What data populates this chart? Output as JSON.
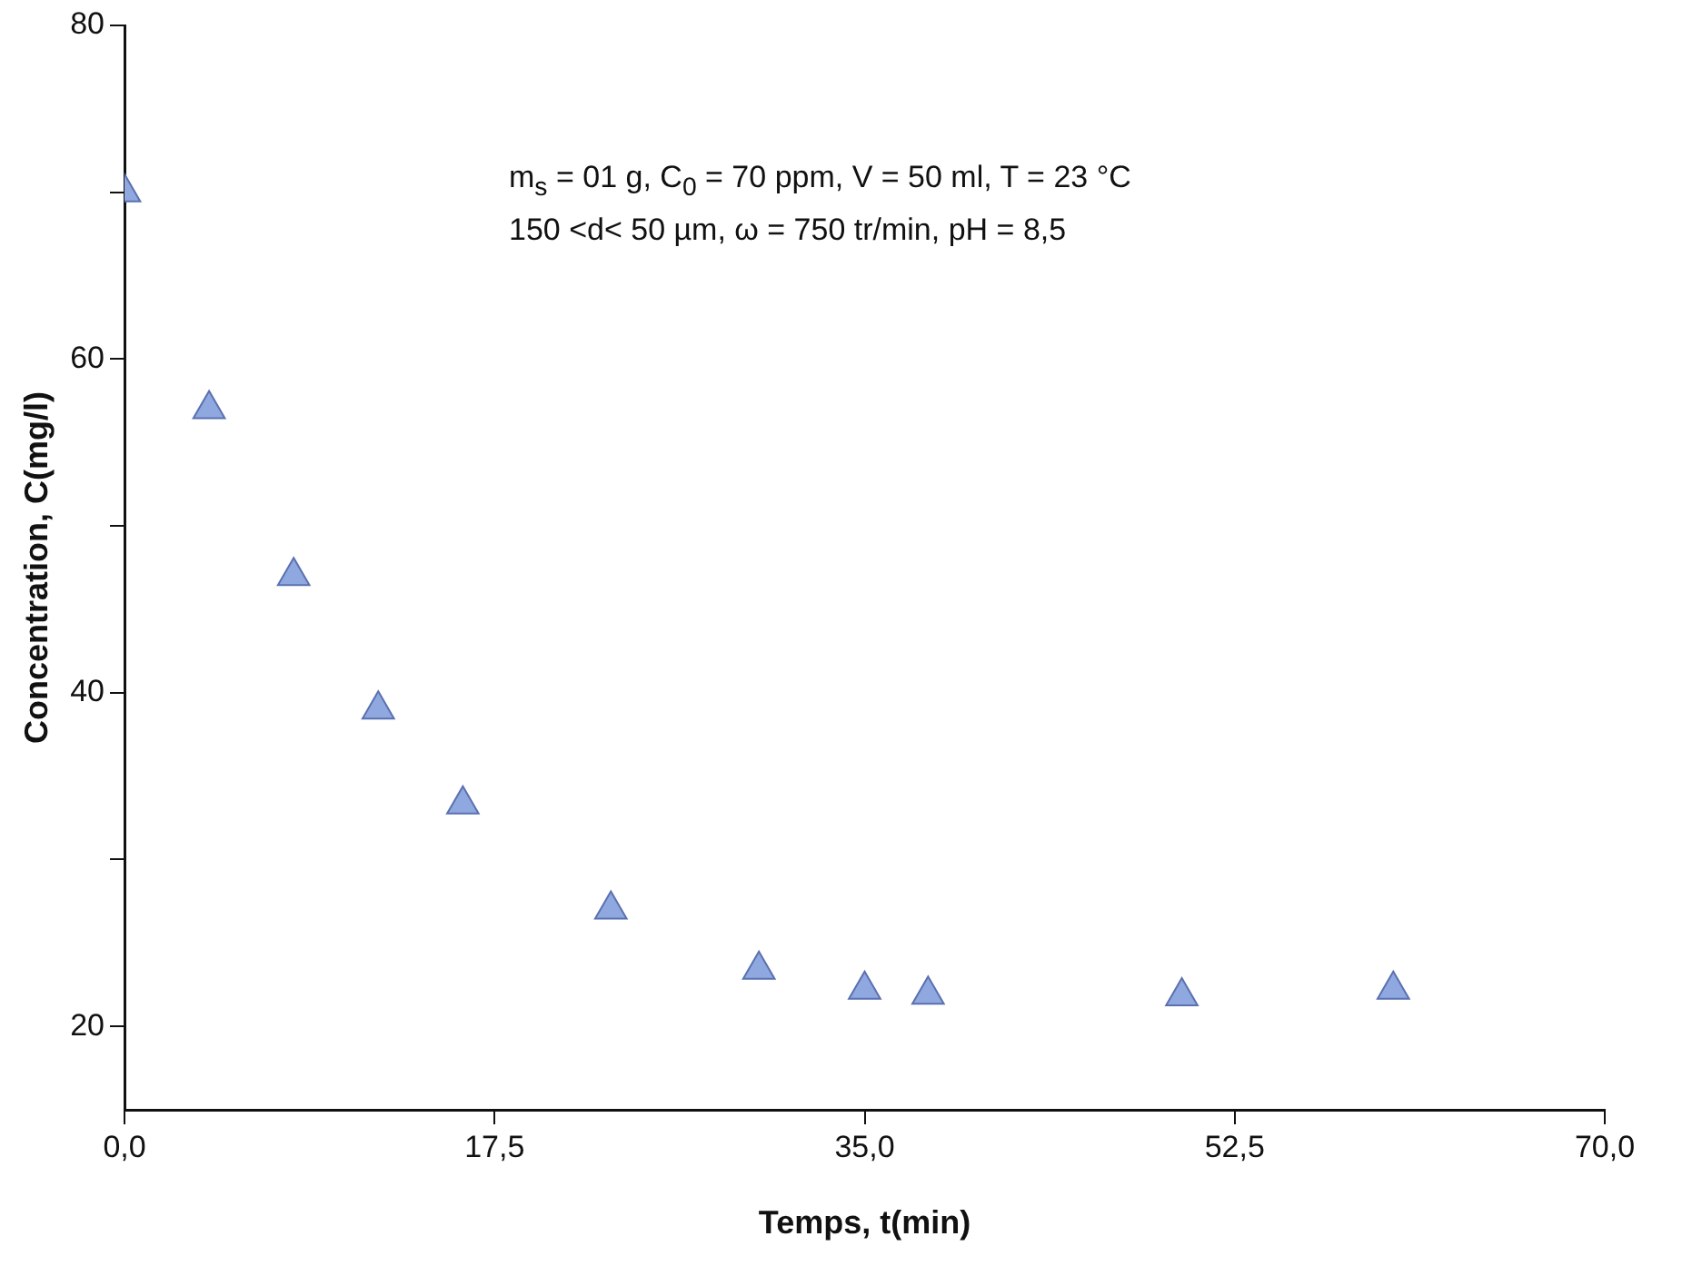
{
  "chart_data": {
    "type": "scatter",
    "xlabel": "Temps, t(min)",
    "ylabel": "Concentration, C(mg/l)",
    "annotations": [
      "m$_{s}$ = 01 g, C$_{0}$ = 70 ppm, V = 50 ml, T = 23 °C",
      "150 <d< 50 µm, ω = 750 tr/min, pH = 8,5"
    ],
    "x": [
      0,
      4,
      8,
      12,
      16,
      23,
      30,
      35,
      38,
      50,
      60
    ],
    "series": [
      {
        "color": "#8fa8e0",
        "values": [
          70,
          57,
          47,
          39,
          33.3,
          27,
          23.4,
          22.2,
          21.9,
          21.8,
          22.2
        ]
      }
    ],
    "xlim": [
      0,
      70
    ],
    "xticks": [
      {
        "value": 0,
        "label": "0,0"
      },
      {
        "value": 17.5,
        "label": "17,5"
      },
      {
        "value": 35,
        "label": "35,0"
      },
      {
        "value": 52.5,
        "label": "52,5"
      },
      {
        "value": 70,
        "label": "70,0"
      }
    ],
    "ylim": [
      15,
      80
    ],
    "yticks": [
      20,
      {
        "value": 30,
        "label": null
      },
      40,
      {
        "value": 50,
        "label": null
      },
      60,
      {
        "value": 70,
        "label": null
      },
      80
    ],
    "grid": false,
    "legend": false,
    "marker": "triangle"
  }
}
